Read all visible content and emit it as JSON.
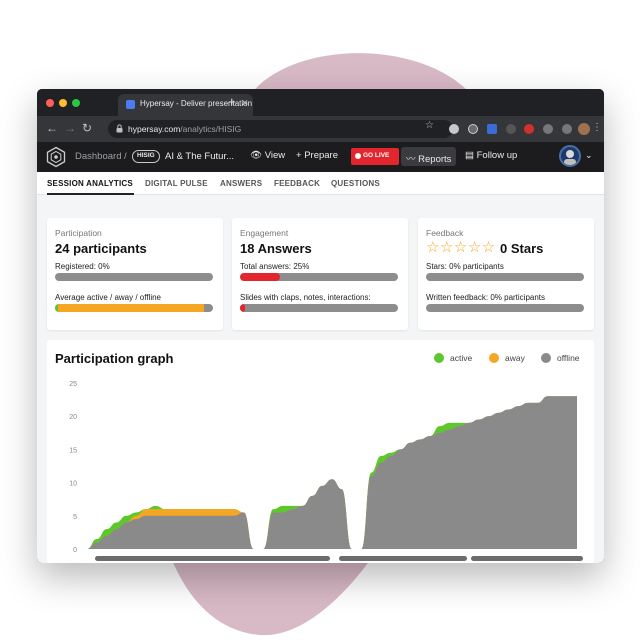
{
  "browser": {
    "tab_title": "Hypersay - Deliver presentation",
    "url_host": "hypersay.com",
    "url_path": "/analytics/HISIG"
  },
  "app_header": {
    "dashboard": "Dashboard",
    "separator": "/",
    "session_code": "HISIG",
    "presentation": "AI & The Futur...",
    "view": "View",
    "prepare": "Prepare",
    "go_live": "GO LIVE",
    "reports": "Reports",
    "follow_up": "Follow up"
  },
  "tabs": [
    "SESSION ANALYTICS",
    "DIGITAL PULSE",
    "ANSWERS",
    "FEEDBACK",
    "QUESTIONS"
  ],
  "cards": {
    "participation": {
      "title": "Participation",
      "headline": "24 participants",
      "registered_label": "Registered: 0%",
      "registered": 0,
      "active_label": "Average active / away / offline",
      "active_pct": 2,
      "away_pct": 92,
      "offline_pct": 6
    },
    "engagement": {
      "title": "Engagement",
      "headline": "18 Answers",
      "total_answers_label": "Total answers: 25%",
      "total_answers": 25,
      "slides_label": "Slides with claps, notes, interactions:",
      "slides_pct": 3
    },
    "feedback": {
      "title": "Feedback",
      "headline": "0 Stars",
      "stars_glyphs": "☆☆☆☆☆",
      "stars_label": "Stars: 0% participants",
      "stars_pct": 0,
      "written_label": "Written feedback: 0% participants",
      "written_pct": 0
    }
  },
  "graph": {
    "title": "Participation graph",
    "legend": [
      "active",
      "away",
      "offline"
    ]
  },
  "colors": {
    "active": "#5cc82b",
    "away": "#f5a623",
    "offline": "#8a8a8a",
    "red": "#e3262d"
  },
  "chart_data": {
    "type": "area",
    "title": "Participation graph",
    "ylim": [
      0,
      25
    ],
    "yticks": [
      0,
      5,
      10,
      15,
      20,
      25
    ],
    "x": [
      0,
      2,
      4,
      6,
      8,
      10,
      12,
      14,
      16,
      18,
      20,
      22,
      24,
      26,
      28,
      30,
      32,
      34,
      36,
      38,
      40,
      42,
      44,
      46,
      48,
      50,
      52,
      54,
      56,
      58,
      60,
      62,
      64,
      66,
      68,
      70,
      72,
      74,
      76,
      78,
      80,
      82,
      84,
      86,
      88,
      90,
      92,
      94,
      96,
      98,
      100
    ],
    "series": [
      {
        "name": "offline",
        "values": [
          0,
          1,
          2,
          3,
          4,
          4.5,
          5,
          5,
          5,
          5,
          5,
          5,
          5,
          5,
          5,
          5,
          5.5,
          0,
          0,
          5.5,
          5.5,
          6,
          6.5,
          8,
          9.5,
          10.5,
          9,
          0,
          0,
          11,
          13,
          14,
          15,
          16,
          16.5,
          17,
          17.5,
          18,
          18.5,
          19,
          19.5,
          20,
          20.5,
          21,
          21.5,
          22,
          22,
          23,
          23,
          23,
          23
        ]
      },
      {
        "name": "away",
        "values": [
          0,
          0,
          0,
          0,
          0,
          0.5,
          1,
          1,
          1,
          1,
          1,
          1,
          1,
          1,
          1,
          1,
          0,
          0,
          0,
          0,
          0,
          0,
          0,
          0,
          0,
          0,
          0,
          0,
          0,
          0,
          0,
          0,
          0,
          0,
          0,
          0,
          0,
          0,
          0,
          0,
          0,
          0,
          0,
          0,
          0,
          0,
          0,
          0,
          0,
          0,
          0
        ]
      },
      {
        "name": "active",
        "values": [
          0,
          0.5,
          1,
          1,
          1,
          0.5,
          0,
          0.5,
          0,
          0,
          0,
          0,
          0,
          0,
          0,
          0,
          0,
          0,
          0,
          0.5,
          1,
          0.5,
          0,
          0,
          0,
          0,
          0,
          0,
          0,
          0.5,
          1,
          0.5,
          0,
          0,
          0,
          0,
          1,
          1,
          0.5,
          0,
          0,
          0,
          0,
          0,
          0,
          0,
          0,
          0,
          0,
          0,
          0
        ]
      }
    ]
  }
}
